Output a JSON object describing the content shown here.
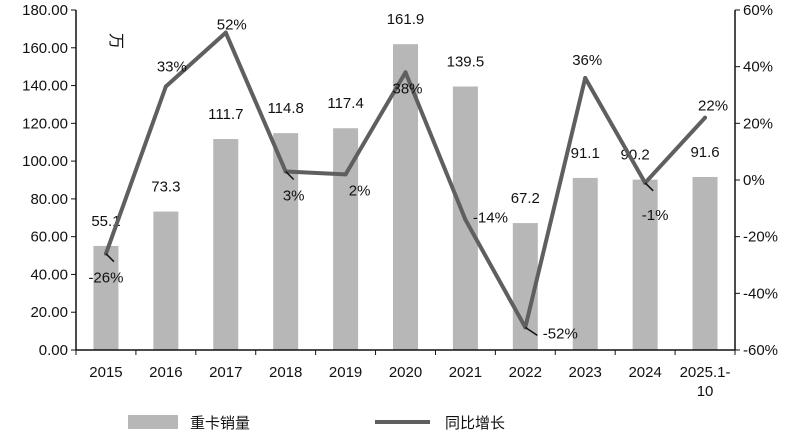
{
  "chart_data": {
    "type": "bar+line",
    "categories": [
      "2015",
      "2016",
      "2017",
      "2018",
      "2019",
      "2020",
      "2021",
      "2022",
      "2023",
      "2024",
      "2025.1-10"
    ],
    "category_lines": [
      [
        "2015"
      ],
      [
        "2016"
      ],
      [
        "2017"
      ],
      [
        "2018"
      ],
      [
        "2019"
      ],
      [
        "2020"
      ],
      [
        "2021"
      ],
      [
        "2022"
      ],
      [
        "2023"
      ],
      [
        "2024"
      ],
      [
        "2025.1-",
        "10"
      ]
    ],
    "unit_label": "万",
    "series": [
      {
        "name": "重卡销量",
        "kind": "bar",
        "axis": "left",
        "color": "#b7b7b7",
        "values": [
          55.1,
          73.3,
          111.7,
          114.8,
          117.4,
          161.9,
          139.5,
          67.2,
          91.1,
          90.2,
          91.6
        ],
        "labels": [
          "55.1",
          "73.3",
          "111.7",
          "114.8",
          "117.4",
          "161.9",
          "139.5",
          "67.2",
          "91.1",
          "90.2",
          "91.6"
        ]
      },
      {
        "name": "同比增长",
        "kind": "line",
        "axis": "right",
        "color": "#5f5f5f",
        "values": [
          -26,
          33,
          52,
          3,
          2,
          38,
          -14,
          -52,
          36,
          -1,
          22
        ],
        "labels": [
          "-26%",
          "33%",
          "52%",
          "3%",
          "2%",
          "38%",
          "-14%",
          "-52%",
          "36%",
          "-1%",
          "22%"
        ]
      }
    ],
    "y_left": {
      "ylim": [
        0,
        180
      ],
      "ticks": [
        "0.00",
        "20.00",
        "40.00",
        "60.00",
        "80.00",
        "100.00",
        "120.00",
        "140.00",
        "160.00",
        "180.00"
      ]
    },
    "y_right": {
      "ylim": [
        -60,
        60
      ],
      "ticks": [
        "-60%",
        "-40%",
        "-20%",
        "0%",
        "20%",
        "40%",
        "60%"
      ]
    },
    "grid": false,
    "legend_position": "bottom"
  }
}
